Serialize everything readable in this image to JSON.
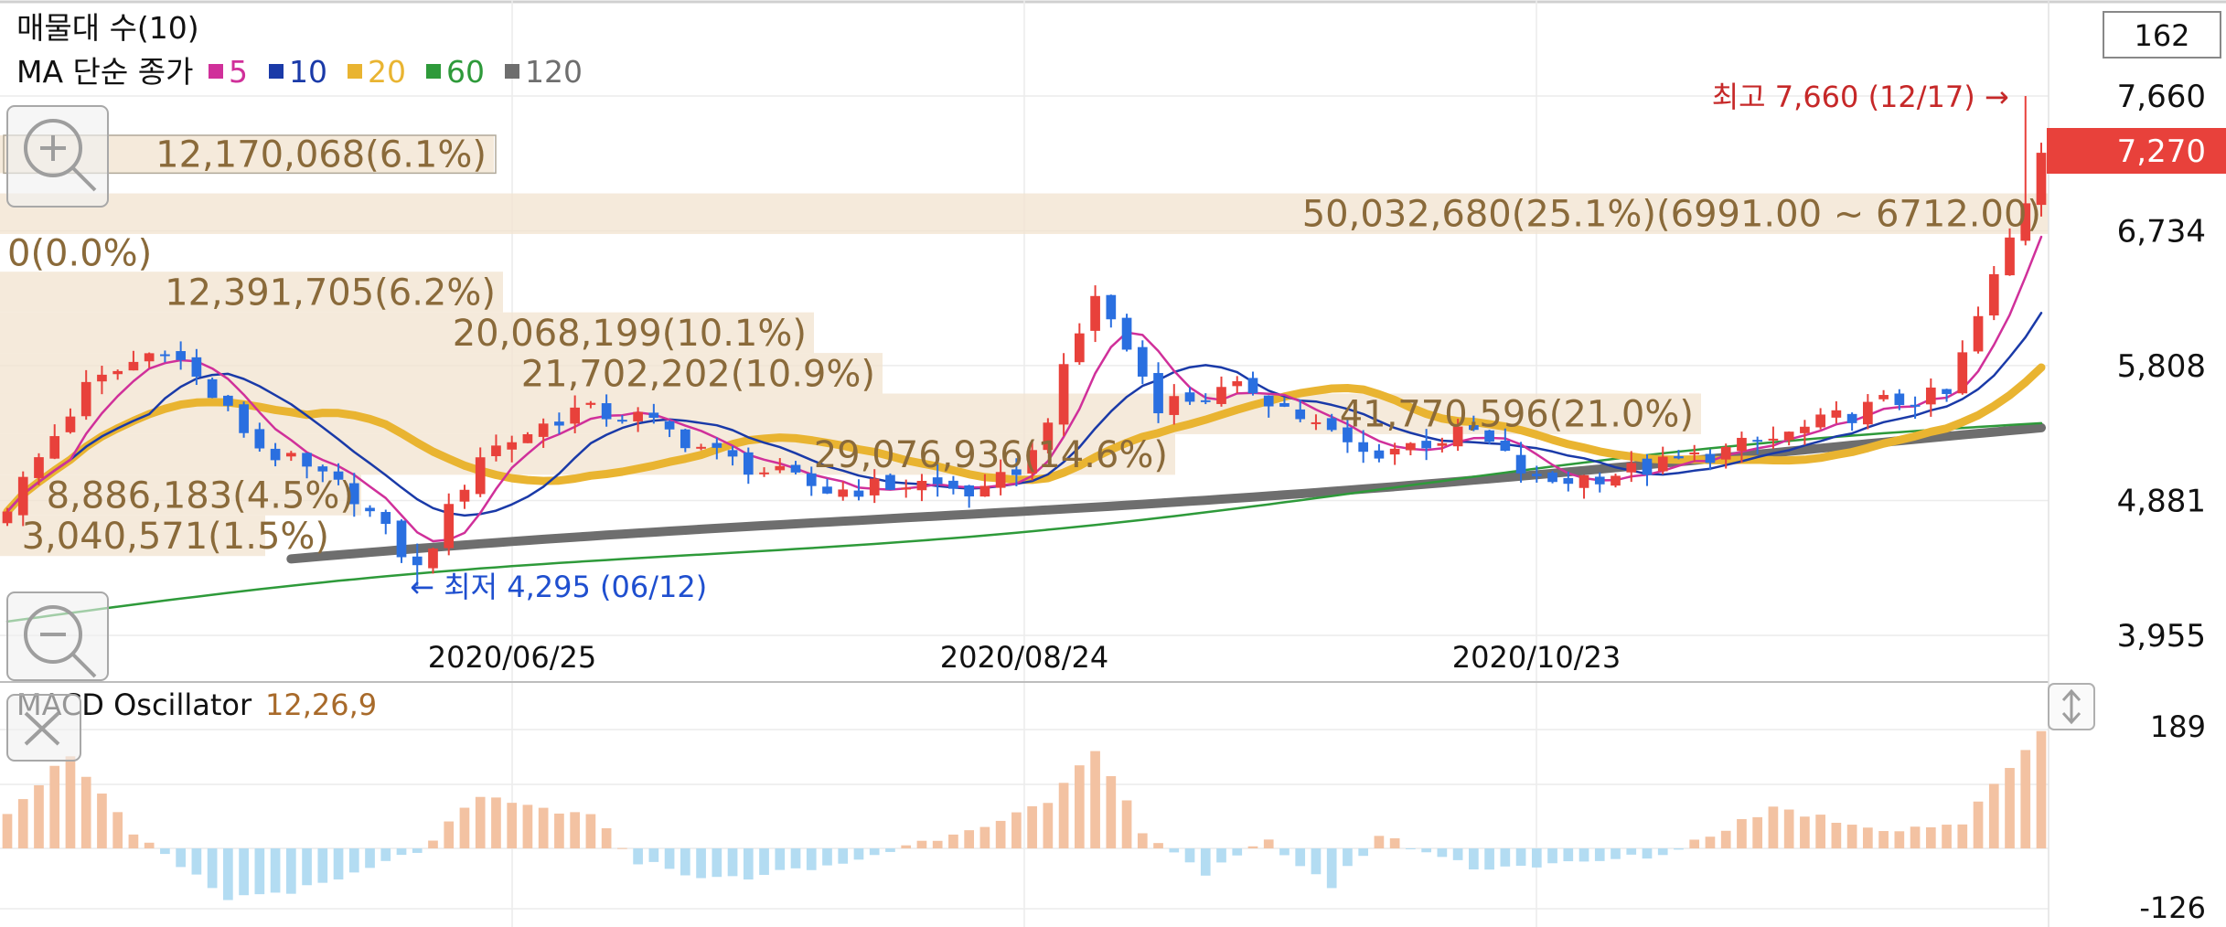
{
  "legend": {
    "volume_title": "매물대 수(10)",
    "ma_title": "MA 단순 종가",
    "ma_items": [
      {
        "period": "5",
        "color": "#d0309a"
      },
      {
        "period": "10",
        "color": "#1a3aa8"
      },
      {
        "period": "20",
        "color": "#e9b431"
      },
      {
        "period": "60",
        "color": "#2e9a3a"
      },
      {
        "period": "120",
        "color": "#6e6e6e"
      }
    ]
  },
  "count_box": "162",
  "price_axis": [
    "7,660",
    "6,734",
    "5,808",
    "4,881",
    "3,955"
  ],
  "current_price": "7,270",
  "date_labels": [
    "2020/06/25",
    "2020/08/24",
    "2020/10/23"
  ],
  "high_note": "최고 7,660 (12/17) →",
  "low_note": "← 최저 4,295 (06/12)",
  "volume_profile": [
    {
      "label": "12,170,068(6.1%)",
      "low": 7130,
      "high": 7390
    },
    {
      "label": "50,032,680(25.1%)(6991.00 ~ 6712.00)",
      "low": 6712,
      "high": 6991
    },
    {
      "label": "0(0.0%)",
      "low": 6453,
      "high": 6712
    },
    {
      "label": "12,391,705(6.2%)",
      "low": 6174,
      "high": 6453
    },
    {
      "label": "20,068,199(10.1%)",
      "low": 5895,
      "high": 6174
    },
    {
      "label": "21,702,202(10.9%)",
      "low": 5616,
      "high": 5895
    },
    {
      "label": "41,770,596(21.0%)",
      "low": 5337,
      "high": 5616
    },
    {
      "label": "29,076,936(14.6%)",
      "low": 5058,
      "high": 5337
    },
    {
      "label": "8,886,183(4.5%)",
      "low": 4779,
      "high": 5058
    },
    {
      "label": "3,040,571(1.5%)",
      "low": 4500,
      "high": 4779
    }
  ],
  "macd": {
    "title": "MACD Oscillator",
    "params": "12,26,9",
    "axis_top": "189",
    "axis_bottom": "-126"
  },
  "colors": {
    "up": "#e8413b",
    "down": "#2a6fe0",
    "ma5": "#d0309a",
    "ma10": "#1a3aa8",
    "ma20": "#e9b431",
    "ma60": "#2e9a3a",
    "ma120": "#6e6e6e",
    "volume_bar": "#f1e3cf",
    "volume_text": "#8a6a3a",
    "macd_pos": "#f3c2a2",
    "macd_neg": "#b3dcf2",
    "high_note": "#c62828",
    "low_note": "#1f4fcf",
    "current_price_bg": "#e8413b"
  },
  "chart_data": {
    "type": "candlestick",
    "price_range": [
      3955,
      7660
    ],
    "count": 130,
    "high": {
      "value": 7660,
      "date": "12/17"
    },
    "low": {
      "value": 4295,
      "date": "06/12"
    },
    "last_close": 7270,
    "ohlc_keypoints": [
      {
        "i": 0,
        "close": 4850
      },
      {
        "i": 5,
        "close": 5650
      },
      {
        "i": 10,
        "close": 5950
      },
      {
        "i": 16,
        "close": 5250
      },
      {
        "i": 22,
        "close": 4920
      },
      {
        "i": 26,
        "close": 4400
      },
      {
        "i": 30,
        "close": 5200
      },
      {
        "i": 36,
        "close": 5500
      },
      {
        "i": 40,
        "close": 5450
      },
      {
        "i": 46,
        "close": 5150
      },
      {
        "i": 52,
        "close": 4950
      },
      {
        "i": 58,
        "close": 5000
      },
      {
        "i": 62,
        "close": 4920
      },
      {
        "i": 65,
        "close": 5200
      },
      {
        "i": 69,
        "close": 6300
      },
      {
        "i": 73,
        "close": 5550
      },
      {
        "i": 79,
        "close": 5650
      },
      {
        "i": 86,
        "close": 5200
      },
      {
        "i": 93,
        "close": 5350
      },
      {
        "i": 97,
        "close": 5000
      },
      {
        "i": 104,
        "close": 5100
      },
      {
        "i": 112,
        "close": 5300
      },
      {
        "i": 119,
        "close": 5550
      },
      {
        "i": 123,
        "close": 5600
      },
      {
        "i": 126,
        "close": 6400
      },
      {
        "i": 128,
        "close": 6950
      },
      {
        "i": 129,
        "close": 7270
      }
    ],
    "macd_keypoints": [
      {
        "i": 0,
        "v": 60
      },
      {
        "i": 4,
        "v": 150
      },
      {
        "i": 8,
        "v": 20
      },
      {
        "i": 14,
        "v": -80
      },
      {
        "i": 20,
        "v": -60
      },
      {
        "i": 26,
        "v": -5
      },
      {
        "i": 30,
        "v": 80
      },
      {
        "i": 37,
        "v": 50
      },
      {
        "i": 40,
        "v": -20
      },
      {
        "i": 45,
        "v": -50
      },
      {
        "i": 52,
        "v": -30
      },
      {
        "i": 58,
        "v": 10
      },
      {
        "i": 62,
        "v": 40
      },
      {
        "i": 66,
        "v": 70
      },
      {
        "i": 69,
        "v": 155
      },
      {
        "i": 72,
        "v": 30
      },
      {
        "i": 76,
        "v": -40
      },
      {
        "i": 80,
        "v": 10
      },
      {
        "i": 84,
        "v": -60
      },
      {
        "i": 87,
        "v": 20
      },
      {
        "i": 93,
        "v": -30
      },
      {
        "i": 99,
        "v": -25
      },
      {
        "i": 105,
        "v": -10
      },
      {
        "i": 112,
        "v": 65
      },
      {
        "i": 119,
        "v": 30
      },
      {
        "i": 124,
        "v": 40
      },
      {
        "i": 129,
        "v": 189
      }
    ]
  }
}
